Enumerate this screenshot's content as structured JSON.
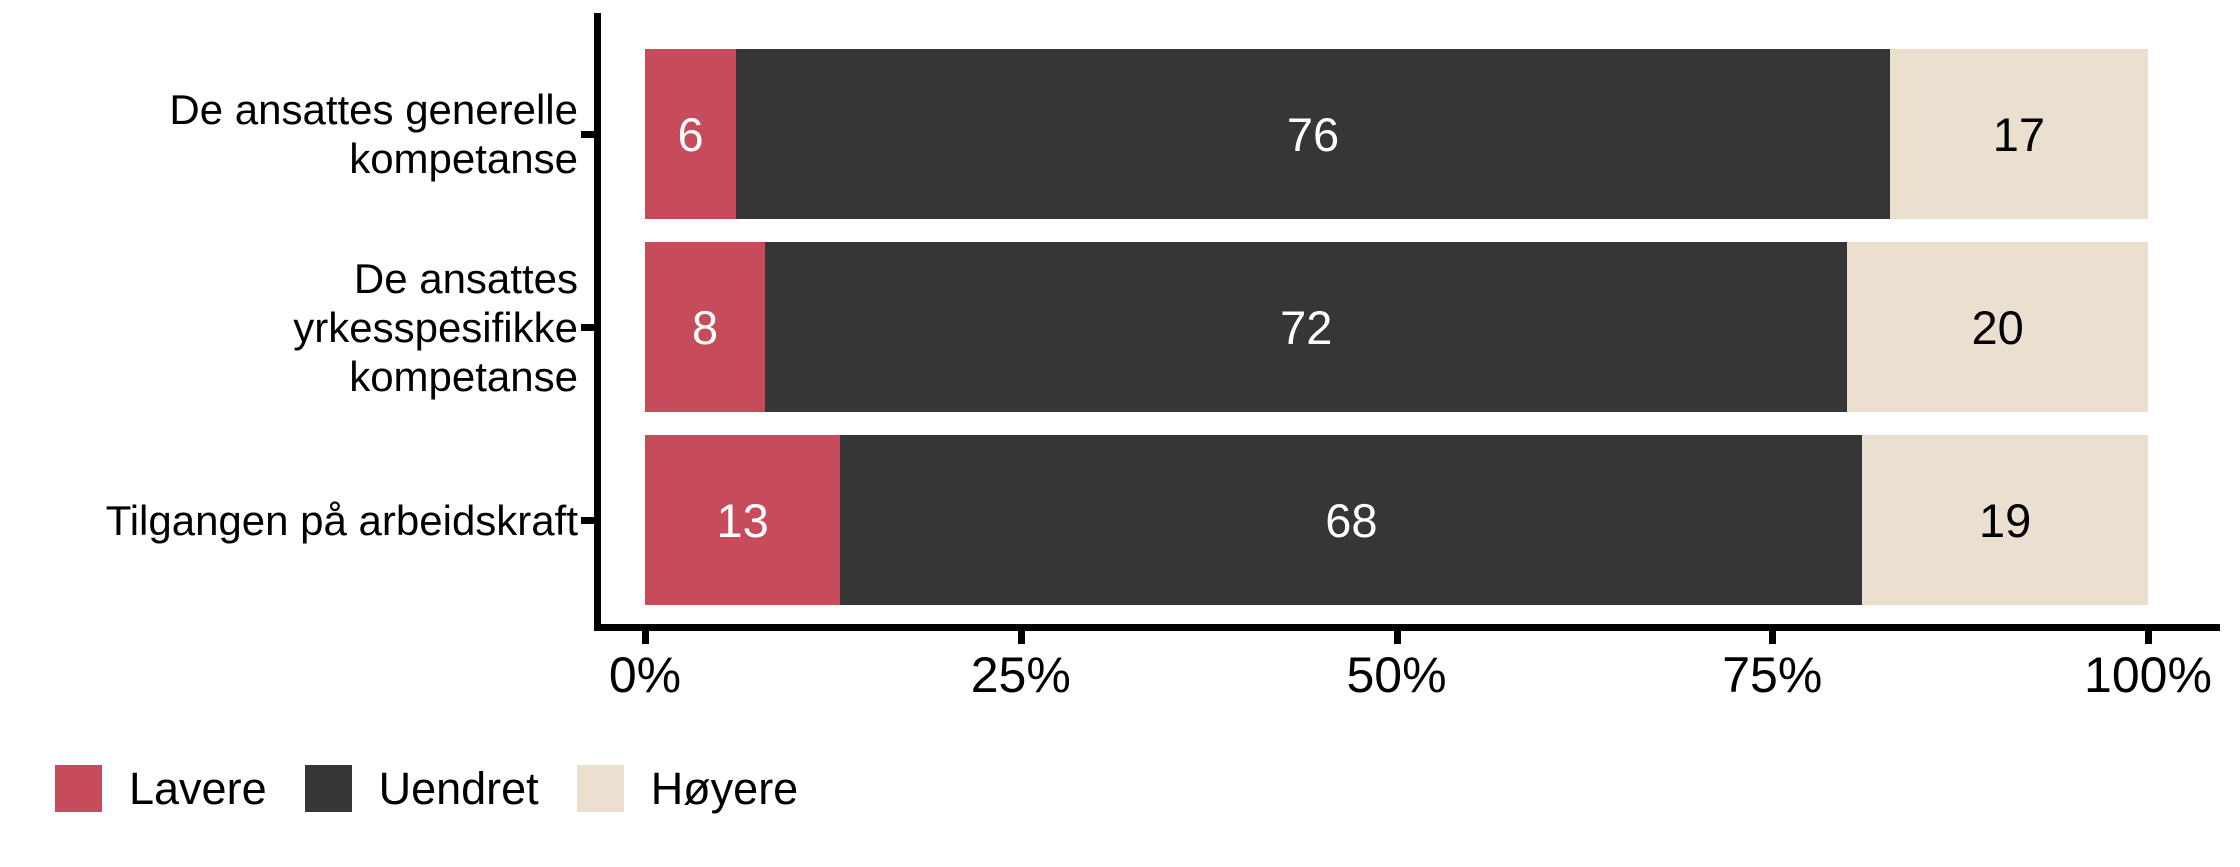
{
  "chart_data": {
    "type": "bar",
    "orientation": "horizontal",
    "stacked": true,
    "normalized_percent": true,
    "title": "",
    "xlabel": "",
    "ylabel": "",
    "categories": [
      "De ansattes generelle kompetanse",
      "De ansattes yrkesspesifikke kompetanse",
      "Tilgangen på arbeidskraft"
    ],
    "category_label_lines": [
      [
        "De ansattes generelle",
        "kompetanse"
      ],
      [
        "De ansattes",
        "yrkesspesifikke",
        "kompetanse"
      ],
      [
        "Tilgangen på arbeidskraft"
      ]
    ],
    "series": [
      {
        "key": "lavere",
        "name": "Lavere",
        "color": "#C64B5B",
        "label_color": "#FFFFFF",
        "values": [
          6,
          8,
          13
        ]
      },
      {
        "key": "uendret",
        "name": "Uendret",
        "color": "#363636",
        "label_color": "#FFFFFF",
        "values": [
          76,
          72,
          68
        ]
      },
      {
        "key": "hoyere",
        "name": "Høyere",
        "color": "#EBE0D0",
        "label_color": "#000000",
        "values": [
          17,
          20,
          19
        ]
      }
    ],
    "x_axis": {
      "range": [
        0,
        100
      ],
      "ticks": [
        {
          "value": 0,
          "label": "0%"
        },
        {
          "value": 25,
          "label": "25%"
        },
        {
          "value": 50,
          "label": "50%"
        },
        {
          "value": 75,
          "label": "75%"
        },
        {
          "value": 100,
          "label": "100%"
        }
      ]
    },
    "legend": {
      "position": "bottom-left",
      "items": [
        "Lavere",
        "Uendret",
        "Høyere"
      ]
    },
    "colors": {
      "axis": "#000000",
      "background": "#FFFFFF",
      "text": "#000000"
    },
    "grid": false
  }
}
